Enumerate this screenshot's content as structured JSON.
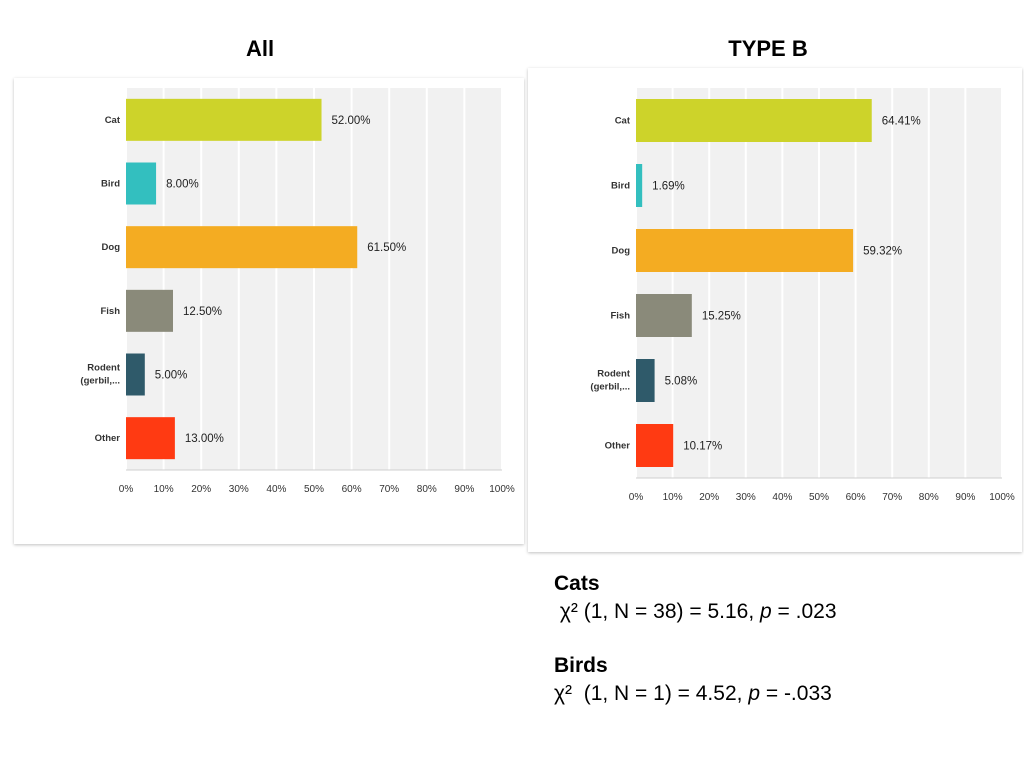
{
  "chart_data": [
    {
      "type": "bar",
      "orientation": "horizontal",
      "title": "All",
      "categories": [
        "Cat",
        "Bird",
        "Dog",
        "Fish",
        [
          "Rodent",
          "(gerbil,..."
        ],
        "Other"
      ],
      "values": [
        52.0,
        8.0,
        61.5,
        12.5,
        5.0,
        13.0
      ],
      "value_labels": [
        "52.00%",
        "8.00%",
        "61.50%",
        "12.50%",
        "5.00%",
        "13.00%"
      ],
      "colors": [
        "#cdd32a",
        "#33bfbf",
        "#f4ac22",
        "#8a8a7a",
        "#2f5a6a",
        "#ff3a12"
      ],
      "xlim": [
        0,
        100
      ],
      "xticks": [
        "0%",
        "10%",
        "20%",
        "30%",
        "40%",
        "50%",
        "60%",
        "70%",
        "80%",
        "90%",
        "100%"
      ],
      "grid": true
    },
    {
      "type": "bar",
      "orientation": "horizontal",
      "title": "TYPE B",
      "categories": [
        "Cat",
        "Bird",
        "Dog",
        "Fish",
        [
          "Rodent",
          "(gerbil,..."
        ],
        "Other"
      ],
      "values": [
        64.41,
        1.69,
        59.32,
        15.25,
        5.08,
        10.17
      ],
      "value_labels": [
        "64.41%",
        "1.69%",
        "59.32%",
        "15.25%",
        "5.08%",
        "10.17%"
      ],
      "colors": [
        "#cdd32a",
        "#33bfbf",
        "#f4ac22",
        "#8a8a7a",
        "#2f5a6a",
        "#ff3a12"
      ],
      "xlim": [
        0,
        100
      ],
      "xticks": [
        "0%",
        "10%",
        "20%",
        "30%",
        "40%",
        "50%",
        "60%",
        "70%",
        "80%",
        "90%",
        "100%"
      ],
      "grid": true
    }
  ],
  "stats": {
    "cats": {
      "heading": "Cats",
      "chi": "χ²",
      "args": "(1, N = 38) = 5.16,",
      "p": "p",
      "p_value": "= .023"
    },
    "birds": {
      "heading": "Birds",
      "chi": "χ²",
      "args": "(1, N = 1) = 4.52,",
      "p": "p",
      "p_value": "= -.033"
    }
  }
}
